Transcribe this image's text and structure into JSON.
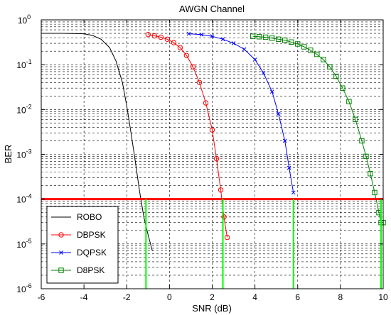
{
  "chart_data": {
    "type": "line",
    "title": "AWGN Channel",
    "xlabel": "SNR (dB)",
    "ylabel": "BER",
    "xlim": [
      -6,
      10
    ],
    "ylim": [
      1e-06,
      1
    ],
    "yscale": "log",
    "grid": "on (major + minor, dashed)",
    "legend_position": "lower-left",
    "x_ticks": [
      "-6",
      "-4",
      "-2",
      "0",
      "2",
      "4",
      "6",
      "8",
      "10"
    ],
    "y_ticks": [
      {
        "base": "10",
        "exp": "-6",
        "value": 1e-06
      },
      {
        "base": "10",
        "exp": "-5",
        "value": 1e-05
      },
      {
        "base": "10",
        "exp": "-4",
        "value": 0.0001
      },
      {
        "base": "10",
        "exp": "-3",
        "value": 0.001
      },
      {
        "base": "10",
        "exp": "-2",
        "value": 0.01
      },
      {
        "base": "10",
        "exp": "-1",
        "value": 0.1
      },
      {
        "base": "10",
        "exp": "0",
        "value": 1
      }
    ],
    "series": [
      {
        "name": "ROBO",
        "color": "#000000",
        "marker": "none",
        "x": [
          -6,
          -5,
          -4,
          -3.6,
          -3.2,
          -2.8,
          -2.5,
          -2.2,
          -2.0,
          -1.8,
          -1.6,
          -1.4,
          -1.2,
          -1.0,
          -0.8
        ],
        "y": [
          0.5,
          0.5,
          0.49,
          0.45,
          0.37,
          0.24,
          0.12,
          0.04,
          0.012,
          0.003,
          0.0007,
          0.00015,
          4e-05,
          1.6e-05,
          7e-06
        ]
      },
      {
        "name": "DBPSK",
        "color": "#ff0000",
        "marker": "circle",
        "x": [
          -1.0,
          -0.7,
          -0.4,
          -0.1,
          0.2,
          0.5,
          0.8,
          1.1,
          1.4,
          1.7,
          2.0,
          2.2,
          2.4,
          2.55,
          2.7
        ],
        "y": [
          0.47,
          0.44,
          0.41,
          0.37,
          0.31,
          0.24,
          0.16,
          0.09,
          0.04,
          0.014,
          0.0035,
          0.0008,
          0.00016,
          4e-05,
          1.4e-05
        ]
      },
      {
        "name": "DQPSK",
        "color": "#0000ff",
        "marker": "x",
        "x": [
          0.9,
          1.5,
          2.0,
          2.5,
          3.0,
          3.5,
          4.0,
          4.4,
          4.8,
          5.1,
          5.4,
          5.6,
          5.8
        ],
        "y": [
          0.49,
          0.47,
          0.43,
          0.37,
          0.3,
          0.22,
          0.13,
          0.065,
          0.025,
          0.008,
          0.002,
          0.0005,
          0.00014
        ]
      },
      {
        "name": "D8PSK",
        "color": "#008000",
        "marker": "square",
        "x": [
          3.9,
          4.2,
          4.5,
          4.8,
          5.1,
          5.4,
          5.7,
          6.0,
          6.3,
          6.6,
          6.9,
          7.2,
          7.5,
          7.8,
          8.1,
          8.4,
          8.7,
          9.0,
          9.2,
          9.4,
          9.6,
          9.8,
          9.9,
          10.0
        ],
        "y": [
          0.43,
          0.42,
          0.41,
          0.39,
          0.37,
          0.35,
          0.32,
          0.29,
          0.25,
          0.21,
          0.17,
          0.13,
          0.09,
          0.055,
          0.03,
          0.015,
          0.006,
          0.002,
          0.0009,
          0.00037,
          0.00014,
          5e-05,
          3e-05,
          3e-05
        ]
      }
    ],
    "reference_line": {
      "y": 0.0001,
      "color": "#ff0000"
    },
    "markers": {
      "x": [
        -1.1,
        2.5,
        5.8,
        9.9
      ],
      "color": "#00ff00"
    }
  }
}
